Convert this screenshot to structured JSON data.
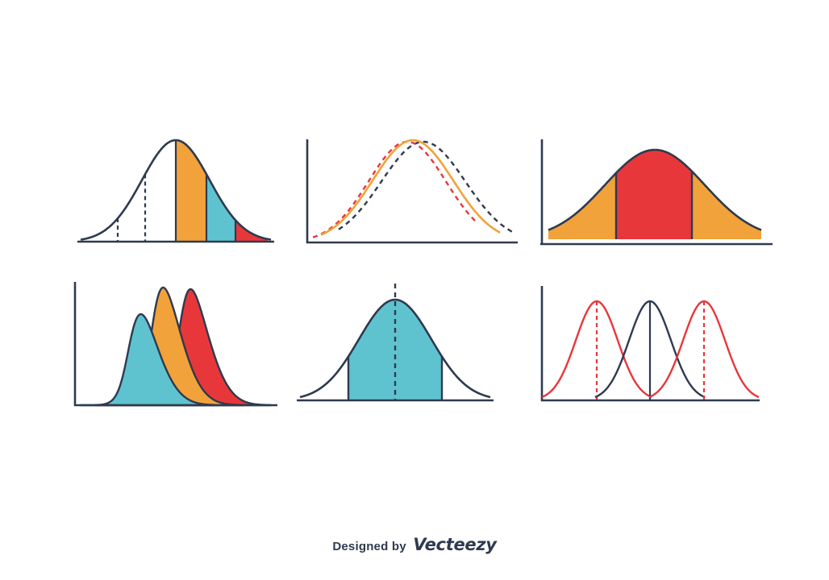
{
  "colors": {
    "navy": "#2e3a4f",
    "orange": "#f2a23a",
    "cyan": "#5fc3cf",
    "red": "#e8373b",
    "white": "#ffffff"
  },
  "panels": [
    {
      "name": "bell-curve-segmented",
      "fills": [
        "white",
        "orange",
        "cyan",
        "red"
      ]
    },
    {
      "name": "overlapping-dashed-curves",
      "series_colors": [
        "red",
        "orange",
        "navy"
      ]
    },
    {
      "name": "bell-curve-center-highlight",
      "fills": [
        "orange",
        "red",
        "orange"
      ]
    },
    {
      "name": "three-skewed-curves",
      "fills": [
        "red",
        "orange",
        "cyan"
      ]
    },
    {
      "name": "bell-curve-mean-line",
      "fills": [
        "white",
        "cyan",
        "white"
      ]
    },
    {
      "name": "three-shifted-curves",
      "series_colors": [
        "red",
        "navy",
        "red"
      ]
    }
  ],
  "credit": {
    "prefix": "Designed by",
    "brand": "Vecteezy"
  }
}
